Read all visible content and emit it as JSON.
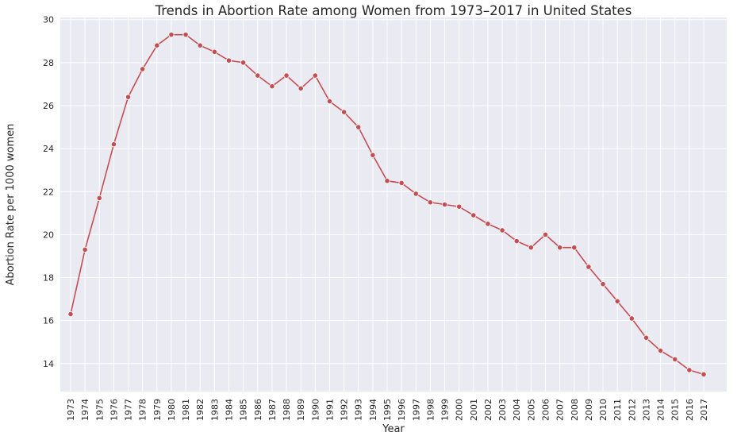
{
  "chart_data": {
    "type": "line",
    "title": "Trends in Abortion Rate among Women from 1973–2017 in United States",
    "xlabel": "Year",
    "ylabel": "Abortion Rate per 1000 women",
    "ylim": [
      12.7,
      30.1
    ],
    "yticks": [
      14,
      16,
      18,
      20,
      22,
      24,
      26,
      28,
      30
    ],
    "grid": true,
    "color": "#c44e52",
    "categories": [
      "1973",
      "1974",
      "1975",
      "1976",
      "1977",
      "1978",
      "1979",
      "1980",
      "1981",
      "1982",
      "1983",
      "1984",
      "1985",
      "1986",
      "1987",
      "1988",
      "1989",
      "1990",
      "1991",
      "1992",
      "1993",
      "1994",
      "1995",
      "1996",
      "1997",
      "1998",
      "1999",
      "2000",
      "2001",
      "2002",
      "2003",
      "2004",
      "2005",
      "2006",
      "2007",
      "2008",
      "2009",
      "2010",
      "2011",
      "2012",
      "2013",
      "2014",
      "2015",
      "2016",
      "2017"
    ],
    "values": [
      16.3,
      19.3,
      21.7,
      24.2,
      26.4,
      27.7,
      28.8,
      29.3,
      29.3,
      28.8,
      28.5,
      28.1,
      28.0,
      27.4,
      26.9,
      27.4,
      26.8,
      27.4,
      26.2,
      25.7,
      25.0,
      23.7,
      22.5,
      22.4,
      21.9,
      21.5,
      21.4,
      21.3,
      20.9,
      20.5,
      20.2,
      19.7,
      19.4,
      20.0,
      19.4,
      19.4,
      18.5,
      17.7,
      16.9,
      16.1,
      15.2,
      14.6,
      14.2,
      13.7,
      13.5
    ]
  }
}
